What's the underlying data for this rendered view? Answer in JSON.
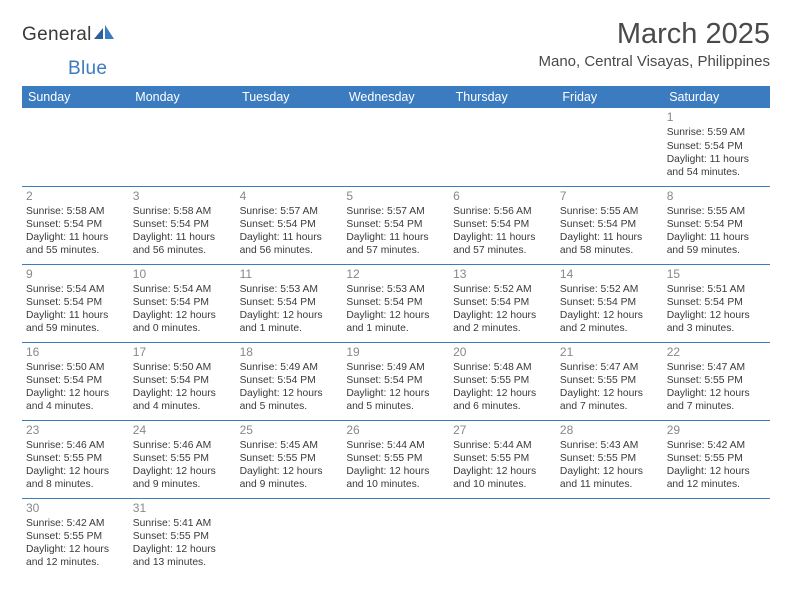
{
  "logo": {
    "text1": "General",
    "text2": "Blue"
  },
  "title": "March 2025",
  "location": "Mano, Central Visayas, Philippines",
  "dayHeaders": [
    "Sunday",
    "Monday",
    "Tuesday",
    "Wednesday",
    "Thursday",
    "Friday",
    "Saturday"
  ],
  "colors": {
    "headerBg": "#3b7bbf",
    "headerText": "#ffffff",
    "textGray": "#3a3a3a",
    "dayNumGray": "#888888",
    "ruleBlue": "#3b7bbf",
    "logoBlue": "#3b7bbf"
  },
  "weeks": [
    [
      {
        "n": "",
        "sr": "",
        "ss": "",
        "dl": ""
      },
      {
        "n": "",
        "sr": "",
        "ss": "",
        "dl": ""
      },
      {
        "n": "",
        "sr": "",
        "ss": "",
        "dl": ""
      },
      {
        "n": "",
        "sr": "",
        "ss": "",
        "dl": ""
      },
      {
        "n": "",
        "sr": "",
        "ss": "",
        "dl": ""
      },
      {
        "n": "",
        "sr": "",
        "ss": "",
        "dl": ""
      },
      {
        "n": "1",
        "sr": "Sunrise: 5:59 AM",
        "ss": "Sunset: 5:54 PM",
        "dl": "Daylight: 11 hours and 54 minutes."
      }
    ],
    [
      {
        "n": "2",
        "sr": "Sunrise: 5:58 AM",
        "ss": "Sunset: 5:54 PM",
        "dl": "Daylight: 11 hours and 55 minutes."
      },
      {
        "n": "3",
        "sr": "Sunrise: 5:58 AM",
        "ss": "Sunset: 5:54 PM",
        "dl": "Daylight: 11 hours and 56 minutes."
      },
      {
        "n": "4",
        "sr": "Sunrise: 5:57 AM",
        "ss": "Sunset: 5:54 PM",
        "dl": "Daylight: 11 hours and 56 minutes."
      },
      {
        "n": "5",
        "sr": "Sunrise: 5:57 AM",
        "ss": "Sunset: 5:54 PM",
        "dl": "Daylight: 11 hours and 57 minutes."
      },
      {
        "n": "6",
        "sr": "Sunrise: 5:56 AM",
        "ss": "Sunset: 5:54 PM",
        "dl": "Daylight: 11 hours and 57 minutes."
      },
      {
        "n": "7",
        "sr": "Sunrise: 5:55 AM",
        "ss": "Sunset: 5:54 PM",
        "dl": "Daylight: 11 hours and 58 minutes."
      },
      {
        "n": "8",
        "sr": "Sunrise: 5:55 AM",
        "ss": "Sunset: 5:54 PM",
        "dl": "Daylight: 11 hours and 59 minutes."
      }
    ],
    [
      {
        "n": "9",
        "sr": "Sunrise: 5:54 AM",
        "ss": "Sunset: 5:54 PM",
        "dl": "Daylight: 11 hours and 59 minutes."
      },
      {
        "n": "10",
        "sr": "Sunrise: 5:54 AM",
        "ss": "Sunset: 5:54 PM",
        "dl": "Daylight: 12 hours and 0 minutes."
      },
      {
        "n": "11",
        "sr": "Sunrise: 5:53 AM",
        "ss": "Sunset: 5:54 PM",
        "dl": "Daylight: 12 hours and 1 minute."
      },
      {
        "n": "12",
        "sr": "Sunrise: 5:53 AM",
        "ss": "Sunset: 5:54 PM",
        "dl": "Daylight: 12 hours and 1 minute."
      },
      {
        "n": "13",
        "sr": "Sunrise: 5:52 AM",
        "ss": "Sunset: 5:54 PM",
        "dl": "Daylight: 12 hours and 2 minutes."
      },
      {
        "n": "14",
        "sr": "Sunrise: 5:52 AM",
        "ss": "Sunset: 5:54 PM",
        "dl": "Daylight: 12 hours and 2 minutes."
      },
      {
        "n": "15",
        "sr": "Sunrise: 5:51 AM",
        "ss": "Sunset: 5:54 PM",
        "dl": "Daylight: 12 hours and 3 minutes."
      }
    ],
    [
      {
        "n": "16",
        "sr": "Sunrise: 5:50 AM",
        "ss": "Sunset: 5:54 PM",
        "dl": "Daylight: 12 hours and 4 minutes."
      },
      {
        "n": "17",
        "sr": "Sunrise: 5:50 AM",
        "ss": "Sunset: 5:54 PM",
        "dl": "Daylight: 12 hours and 4 minutes."
      },
      {
        "n": "18",
        "sr": "Sunrise: 5:49 AM",
        "ss": "Sunset: 5:54 PM",
        "dl": "Daylight: 12 hours and 5 minutes."
      },
      {
        "n": "19",
        "sr": "Sunrise: 5:49 AM",
        "ss": "Sunset: 5:54 PM",
        "dl": "Daylight: 12 hours and 5 minutes."
      },
      {
        "n": "20",
        "sr": "Sunrise: 5:48 AM",
        "ss": "Sunset: 5:55 PM",
        "dl": "Daylight: 12 hours and 6 minutes."
      },
      {
        "n": "21",
        "sr": "Sunrise: 5:47 AM",
        "ss": "Sunset: 5:55 PM",
        "dl": "Daylight: 12 hours and 7 minutes."
      },
      {
        "n": "22",
        "sr": "Sunrise: 5:47 AM",
        "ss": "Sunset: 5:55 PM",
        "dl": "Daylight: 12 hours and 7 minutes."
      }
    ],
    [
      {
        "n": "23",
        "sr": "Sunrise: 5:46 AM",
        "ss": "Sunset: 5:55 PM",
        "dl": "Daylight: 12 hours and 8 minutes."
      },
      {
        "n": "24",
        "sr": "Sunrise: 5:46 AM",
        "ss": "Sunset: 5:55 PM",
        "dl": "Daylight: 12 hours and 9 minutes."
      },
      {
        "n": "25",
        "sr": "Sunrise: 5:45 AM",
        "ss": "Sunset: 5:55 PM",
        "dl": "Daylight: 12 hours and 9 minutes."
      },
      {
        "n": "26",
        "sr": "Sunrise: 5:44 AM",
        "ss": "Sunset: 5:55 PM",
        "dl": "Daylight: 12 hours and 10 minutes."
      },
      {
        "n": "27",
        "sr": "Sunrise: 5:44 AM",
        "ss": "Sunset: 5:55 PM",
        "dl": "Daylight: 12 hours and 10 minutes."
      },
      {
        "n": "28",
        "sr": "Sunrise: 5:43 AM",
        "ss": "Sunset: 5:55 PM",
        "dl": "Daylight: 12 hours and 11 minutes."
      },
      {
        "n": "29",
        "sr": "Sunrise: 5:42 AM",
        "ss": "Sunset: 5:55 PM",
        "dl": "Daylight: 12 hours and 12 minutes."
      }
    ],
    [
      {
        "n": "30",
        "sr": "Sunrise: 5:42 AM",
        "ss": "Sunset: 5:55 PM",
        "dl": "Daylight: 12 hours and 12 minutes."
      },
      {
        "n": "31",
        "sr": "Sunrise: 5:41 AM",
        "ss": "Sunset: 5:55 PM",
        "dl": "Daylight: 12 hours and 13 minutes."
      },
      {
        "n": "",
        "sr": "",
        "ss": "",
        "dl": ""
      },
      {
        "n": "",
        "sr": "",
        "ss": "",
        "dl": ""
      },
      {
        "n": "",
        "sr": "",
        "ss": "",
        "dl": ""
      },
      {
        "n": "",
        "sr": "",
        "ss": "",
        "dl": ""
      },
      {
        "n": "",
        "sr": "",
        "ss": "",
        "dl": ""
      }
    ]
  ]
}
